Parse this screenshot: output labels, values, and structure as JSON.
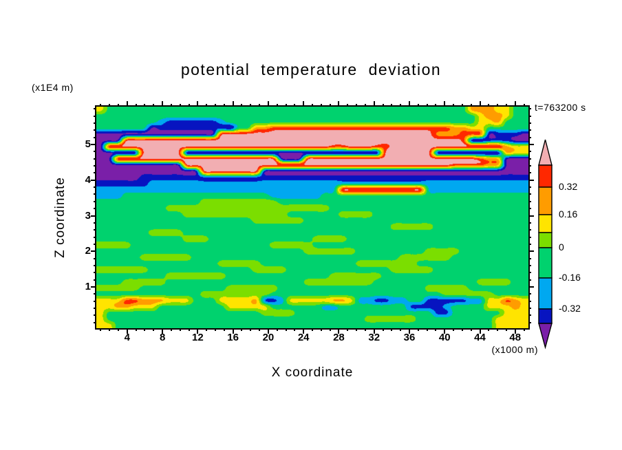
{
  "chart_data": {
    "type": "heatmap",
    "title": "potential temperature deviation",
    "timestamp": "t=763200 s",
    "xlabel": "X coordinate",
    "ylabel": "Z coordinate",
    "x_unit": "(x1000 m)",
    "y_unit": "(x1E4 m)",
    "xlim": [
      0.5,
      49.5
    ],
    "ylim": [
      0,
      6
    ],
    "x_ticks": [
      4,
      8,
      12,
      16,
      20,
      24,
      28,
      32,
      36,
      40,
      44,
      48
    ],
    "y_ticks": [
      1,
      2,
      3,
      4,
      5
    ],
    "grid_on": false,
    "colorbar": {
      "labels": [
        "0.32",
        "0.16",
        "0",
        "-0.16",
        "-0.32"
      ],
      "levels": [
        0.32,
        0.16,
        0,
        -0.16,
        -0.32
      ],
      "top_spike_color": "#F2AEB2",
      "bottom_spike_color": "#7A1FA8",
      "segment_colors": [
        "#FF2800",
        "#FF9C00",
        "#FFE400",
        "#7BDE00",
        "#00D26E",
        "#00A8F0",
        "#0714C0"
      ]
    },
    "field": {
      "nx": 50,
      "x_range": [
        0,
        50
      ],
      "z_range": [
        0,
        6
      ],
      "palette_colors": [
        "#7A1FA8",
        "#0714C0",
        "#00A8F0",
        "#00D26E",
        "#7BDE00",
        "#FFE400",
        "#FF9C00",
        "#FF2800",
        "#F2AEB2"
      ],
      "palette_values": [
        -0.44,
        -0.32,
        -0.16,
        0,
        0.08,
        0.16,
        0.24,
        0.36,
        0.44
      ],
      "rows_note": "rows are top (z=6) to bottom (z=0); each char is a palette index 0-8",
      "rows": [
        "53333333333333333333333333333333333333333336665533",
        "333333333333333333333333333333333333333333335665 33",
        "33333332111111233333333333333333333333333333556333",
        "33333301111111103366777777777777777777777665533333",
        "00000000000000888888888888888888888888866677701110",
        "00088888888888888888888888888888888888888870011100",
        "08888888888888888888888888877888778888888888888655",
        "00000888880000000000000000000000088888800000000655 66",
        "00888888888888888888800088888888888888888888766000",
        "00000000008888888888888888888888888888888777766000",
        "00000000000088888880000000000000000000000000000000",
        "00000111111111111111111111111111111111111111111111",
        "11111122222222222222222222222222222222222222222222",
        "22222222222222222222222222228888888888222222222222",
        "22233333333333333333222222333333333333333333333333",
        "33333333333344444444433333333333333333333333333333",
        "33333333444444444444444444433333333333333333333333",
        "33333333334444444444443333334444333333333333333333",
        "33333333333333333344444433333333333333333333333333",
        "33333333333333333333333333333333334444433333333333",
        "33333344443333333333333333333333333333333333333333",
        "33333333334443333333333334444333333333333333333333",
        "44443333333333333333444443333333333333333333333333",
        "33333333333333333333333344444433333333444433333333",
        "33333444444333333333333333333333333444444333333333",
        "33333333333333444443333333333344444443333333333333",
        "44444433333333333344443333333333334444433333333333",
        "33333333444444433333333333344444433333333333333333",
        "33344444333333333333333344444444333333333333444433 33",
        "44444333333333344444433333333333333333444443333333",
        "33333333333344444444333333333333333333334444443333",
        "55577666555333555561125555566522112233111112255765",
        "55665553333333355555333333223333333311112333355565",
        "53333333333333333334444333333333333333311333333555 5",
        "53333333333333333333333333333334444443333333335555",
        "55333333333333333333333333333333333333333333335555"
      ]
    }
  }
}
